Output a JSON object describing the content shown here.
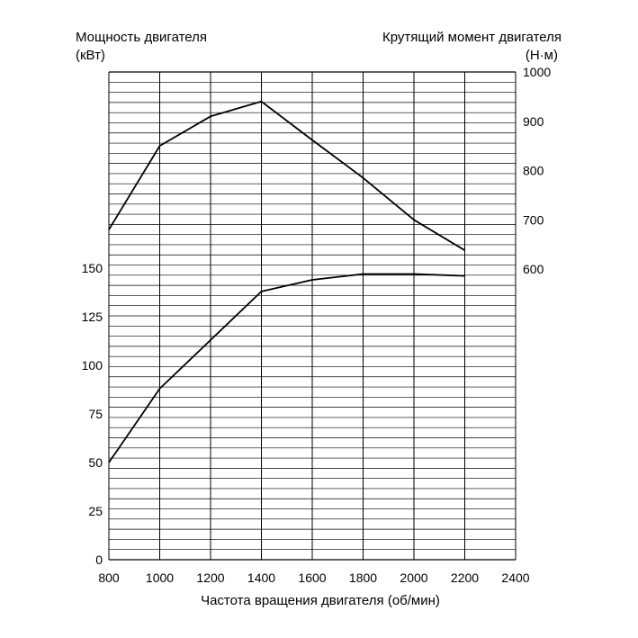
{
  "chart_data": {
    "type": "line",
    "left_axis_title_line1": "Мощность двигателя",
    "left_axis_title_line2": "(кВт)",
    "right_axis_title_line1": "Крутящий момент двигателя",
    "right_axis_title_line2": "(Н·м)",
    "xlabel": "Частота вращения двигателя (об/мин)",
    "xlim": [
      800,
      2400
    ],
    "x_ticks": [
      "800",
      "1000",
      "1200",
      "1400",
      "1600",
      "1800",
      "2000",
      "2200",
      "2400"
    ],
    "power_axis": {
      "ticks": [
        "0",
        "25",
        "50",
        "75",
        "100",
        "125",
        "150"
      ],
      "lim": [
        0,
        245
      ]
    },
    "torque_axis": {
      "ticks": [
        "600",
        "700",
        "800",
        "900",
        "1000"
      ],
      "lim": [
        1000,
        0
      ]
    },
    "grid": true,
    "series": [
      {
        "axis": "torque",
        "x": [
          800,
          1000,
          1200,
          1400,
          1600,
          1800,
          2000,
          2200
        ],
        "y": [
          680,
          850,
          910,
          940,
          862,
          785,
          700,
          638
        ]
      },
      {
        "axis": "power",
        "x": [
          800,
          1000,
          1200,
          1400,
          1600,
          1800,
          2000,
          2200
        ],
        "y": [
          50,
          88,
          113,
          138,
          144,
          147,
          147,
          146
        ]
      }
    ]
  }
}
